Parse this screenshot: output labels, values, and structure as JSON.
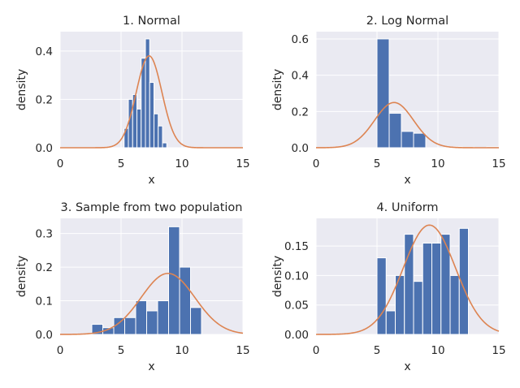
{
  "chart_data": [
    {
      "type": "histogram",
      "title": "1. Normal",
      "xlabel": "x",
      "ylabel": "density",
      "xlim": [
        0,
        15
      ],
      "ylim": [
        0,
        0.48
      ],
      "xticks": [
        "0",
        "5",
        "10",
        "15"
      ],
      "yticks": [
        "0.0",
        "0.2",
        "0.4"
      ],
      "bins": [
        {
          "x0": 5.25,
          "x1": 5.6,
          "value": 0.08
        },
        {
          "x0": 5.6,
          "x1": 5.95,
          "value": 0.2
        },
        {
          "x0": 5.95,
          "x1": 6.3,
          "value": 0.22
        },
        {
          "x0": 6.3,
          "x1": 6.65,
          "value": 0.16
        },
        {
          "x0": 6.65,
          "x1": 7.0,
          "value": 0.37
        },
        {
          "x0": 7.0,
          "x1": 7.35,
          "value": 0.45
        },
        {
          "x0": 7.35,
          "x1": 7.7,
          "value": 0.27
        },
        {
          "x0": 7.7,
          "x1": 8.05,
          "value": 0.14
        },
        {
          "x0": 8.05,
          "x1": 8.4,
          "value": 0.09
        },
        {
          "x0": 8.4,
          "x1": 8.75,
          "value": 0.02
        }
      ],
      "curve": {
        "type": "normal_pdf",
        "mean": 7.3,
        "sd": 1.05
      }
    },
    {
      "type": "histogram",
      "title": "2. Log Normal",
      "xlabel": "x",
      "ylabel": "density",
      "xlim": [
        0,
        15
      ],
      "ylim": [
        0,
        0.64
      ],
      "xticks": [
        "0",
        "5",
        "10",
        "15"
      ],
      "yticks": [
        "0.0",
        "0.2",
        "0.4",
        "0.6"
      ],
      "bins": [
        {
          "x0": 5.0,
          "x1": 6.0,
          "value": 0.6
        },
        {
          "x0": 6.0,
          "x1": 7.0,
          "value": 0.19
        },
        {
          "x0": 7.0,
          "x1": 8.0,
          "value": 0.09
        },
        {
          "x0": 8.0,
          "x1": 9.0,
          "value": 0.08
        },
        {
          "x0": 9.0,
          "x1": 10.0,
          "value": 0.0
        },
        {
          "x0": 10.0,
          "x1": 11.0,
          "value": 0.0
        },
        {
          "x0": 11.0,
          "x1": 12.0,
          "value": 0.005
        },
        {
          "x0": 12.0,
          "x1": 13.0,
          "value": 0.003
        },
        {
          "x0": 13.0,
          "x1": 14.0,
          "value": 0.0
        },
        {
          "x0": 14.0,
          "x1": 15.0,
          "value": 0.005
        }
      ],
      "curve": {
        "type": "normal_pdf",
        "mean": 6.4,
        "sd": 1.6
      }
    },
    {
      "type": "histogram",
      "title": "3. Sample from two population",
      "xlabel": "x",
      "ylabel": "density",
      "xlim": [
        0,
        15
      ],
      "ylim": [
        0,
        0.345
      ],
      "xticks": [
        "0",
        "5",
        "10",
        "15"
      ],
      "yticks": [
        "0.0",
        "0.1",
        "0.2",
        "0.3"
      ],
      "bins": [
        {
          "x0": 2.6,
          "x1": 3.5,
          "value": 0.03
        },
        {
          "x0": 3.5,
          "x1": 4.4,
          "value": 0.02
        },
        {
          "x0": 4.4,
          "x1": 5.3,
          "value": 0.05
        },
        {
          "x0": 5.3,
          "x1": 6.2,
          "value": 0.05
        },
        {
          "x0": 6.2,
          "x1": 7.1,
          "value": 0.1
        },
        {
          "x0": 7.1,
          "x1": 8.0,
          "value": 0.07
        },
        {
          "x0": 8.0,
          "x1": 8.9,
          "value": 0.1
        },
        {
          "x0": 8.9,
          "x1": 9.8,
          "value": 0.32
        },
        {
          "x0": 9.8,
          "x1": 10.7,
          "value": 0.2
        },
        {
          "x0": 10.7,
          "x1": 11.6,
          "value": 0.08
        }
      ],
      "curve": {
        "type": "normal_pdf",
        "mean": 8.85,
        "sd": 2.2
      }
    },
    {
      "type": "histogram",
      "title": "4. Uniform",
      "xlabel": "x",
      "ylabel": "density",
      "xlim": [
        0,
        15
      ],
      "ylim": [
        0,
        0.197
      ],
      "xticks": [
        "0",
        "5",
        "10",
        "15"
      ],
      "yticks": [
        "0.00",
        "0.05",
        "0.10",
        "0.15"
      ],
      "bins": [
        {
          "x0": 5.0,
          "x1": 5.75,
          "value": 0.13
        },
        {
          "x0": 5.75,
          "x1": 6.5,
          "value": 0.04
        },
        {
          "x0": 6.5,
          "x1": 7.25,
          "value": 0.1
        },
        {
          "x0": 7.25,
          "x1": 8.0,
          "value": 0.17
        },
        {
          "x0": 8.0,
          "x1": 8.75,
          "value": 0.09
        },
        {
          "x0": 8.75,
          "x1": 9.5,
          "value": 0.155
        },
        {
          "x0": 9.5,
          "x1": 10.25,
          "value": 0.155
        },
        {
          "x0": 10.25,
          "x1": 11.0,
          "value": 0.17
        },
        {
          "x0": 11.0,
          "x1": 11.75,
          "value": 0.1
        },
        {
          "x0": 11.75,
          "x1": 12.5,
          "value": 0.18
        }
      ],
      "curve": {
        "type": "normal_pdf",
        "mean": 9.3,
        "sd": 2.15
      }
    }
  ],
  "colors": {
    "panel_bg": "#eaeaf2",
    "grid": "#ffffff",
    "bar": "#4c72b0",
    "bar_edge": "#ffffff",
    "curve": "#dd8452",
    "text": "#262626"
  }
}
